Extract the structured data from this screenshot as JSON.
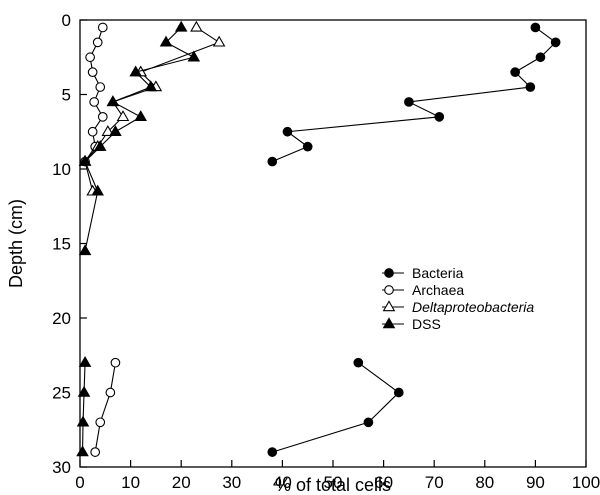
{
  "chart_data": {
    "type": "scatter",
    "title": "",
    "xlabel": "% of total cells",
    "ylabel": "Depth (cm)",
    "xlim": [
      0,
      100
    ],
    "ylim": [
      0,
      30
    ],
    "y_inverted": true,
    "xticks": [
      0,
      10,
      20,
      30,
      40,
      50,
      60,
      70,
      80,
      90,
      100
    ],
    "yticks": [
      0,
      5,
      10,
      15,
      20,
      25,
      30
    ],
    "grid": false,
    "legend_position": "center-right",
    "series": [
      {
        "name": "Bacteria",
        "marker": "filled-circle",
        "segments": [
          [
            [
              90,
              0.5
            ],
            [
              94,
              1.5
            ],
            [
              91,
              2.5
            ],
            [
              86,
              3.5
            ],
            [
              89,
              4.5
            ],
            [
              65,
              5.5
            ],
            [
              71,
              6.5
            ],
            [
              41,
              7.5
            ],
            [
              45,
              8.5
            ],
            [
              38,
              9.5
            ]
          ],
          [
            [
              55,
              23
            ],
            [
              63,
              25
            ],
            [
              57,
              27
            ],
            [
              38,
              29
            ]
          ]
        ]
      },
      {
        "name": "Archaea",
        "marker": "open-circle",
        "segments": [
          [
            [
              4.5,
              0.5
            ],
            [
              3.5,
              1.5
            ],
            [
              2,
              2.5
            ],
            [
              2.5,
              3.5
            ],
            [
              4,
              4.5
            ],
            [
              2.8,
              5.5
            ],
            [
              4.5,
              6.5
            ],
            [
              2.5,
              7.5
            ],
            [
              3,
              8.5
            ],
            [
              1,
              9.5
            ]
          ],
          [
            [
              7,
              23
            ],
            [
              6,
              25
            ],
            [
              4,
              27
            ],
            [
              3,
              29
            ]
          ]
        ]
      },
      {
        "name": "Deltaproteobacteria",
        "marker": "open-triangle",
        "italic": true,
        "segments": [
          [
            [
              23,
              0.5
            ],
            [
              27.5,
              1.5
            ],
            [
              12,
              3.5
            ],
            [
              15,
              4.5
            ],
            [
              6.5,
              5.5
            ],
            [
              8.5,
              6.5
            ],
            [
              5.5,
              7.5
            ],
            [
              3.5,
              8.5
            ],
            [
              1,
              9.5
            ],
            [
              2.5,
              11.5
            ]
          ]
        ]
      },
      {
        "name": "DSS",
        "marker": "filled-triangle",
        "segments": [
          [
            [
              20,
              0.5
            ],
            [
              17,
              1.5
            ],
            [
              22.5,
              2.5
            ],
            [
              11,
              3.5
            ],
            [
              14,
              4.5
            ],
            [
              6.5,
              5.5
            ],
            [
              12,
              6.5
            ],
            [
              7,
              7.5
            ],
            [
              4,
              8.5
            ],
            [
              1,
              9.5
            ],
            [
              3.5,
              11.5
            ],
            [
              1,
              15.5
            ]
          ],
          [
            [
              1,
              23
            ],
            [
              0.8,
              25
            ],
            [
              0.6,
              27
            ],
            [
              0.5,
              29
            ]
          ]
        ]
      }
    ]
  }
}
